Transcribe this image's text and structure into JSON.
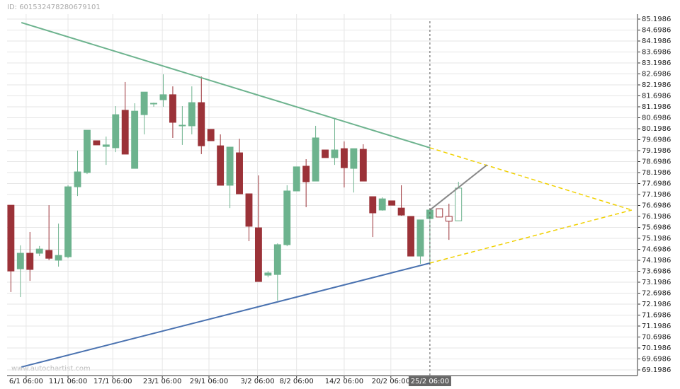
{
  "chart_data": {
    "type": "candlestick",
    "id_label": "ID: 601532478280679101",
    "watermark": "www.autochartist.com",
    "ylim": [
      69.1986,
      85.1986
    ],
    "xlim": [
      -0.4,
      65.8
    ],
    "yticks": [
      69.1986,
      69.6986,
      70.1986,
      70.6986,
      71.1986,
      71.6986,
      72.1986,
      72.6986,
      73.1986,
      73.6986,
      74.1986,
      74.6986,
      75.1986,
      75.6986,
      76.1986,
      76.6986,
      77.1986,
      77.6986,
      78.1986,
      78.6986,
      79.1986,
      79.6986,
      80.1986,
      80.6986,
      81.1986,
      81.6986,
      82.1986,
      82.6986,
      83.1986,
      83.6986,
      84.1986,
      84.6986,
      85.1986
    ],
    "xticks": [
      {
        "value": 1.6,
        "label": "6/1 06:00"
      },
      {
        "value": 6,
        "label": "11/1 06:00"
      },
      {
        "value": 10.7,
        "label": "17/1 06:00"
      },
      {
        "value": 15.9,
        "label": "23/1 06:00"
      },
      {
        "value": 20.8,
        "label": "29/1 06:00"
      },
      {
        "value": 25.9,
        "label": "3/2 06:00"
      },
      {
        "value": 30,
        "label": "8/2 06:00"
      },
      {
        "value": 35,
        "label": "14/2 06:00"
      },
      {
        "value": 39.9,
        "label": "20/2 06:00"
      }
    ],
    "marker": {
      "value": 44,
      "label": "25/2 06:00"
    },
    "grid": true,
    "up_color": "#6db38e",
    "down_color": "#9b3238",
    "open": [
      76.71,
      73.81,
      74.52,
      74.52,
      74.65,
      74.2,
      74.36,
      77.55,
      78.2,
      79.65,
      79.39,
      79.33,
      81.04,
      78.39,
      80.84,
      81.33,
      81.52,
      81.75,
      80.33,
      80.33,
      81.39,
      80.17,
      79.42,
      77.62,
      79.1,
      77.23,
      75.68,
      73.52,
      73.55,
      74.91,
      77.36,
      78.49,
      77.81,
      79.23,
      78.88,
      79.29,
      78.39,
      79.26,
      77.1,
      76.49,
      76.91,
      76.58,
      76.2,
      74.39,
      76.1
    ],
    "high": [
      76.71,
      74.88,
      75.49,
      74.85,
      76.71,
      75.87,
      77.62,
      79.2,
      80.13,
      79.65,
      79.84,
      81.23,
      82.33,
      81.36,
      81.87,
      81.39,
      82.68,
      82.13,
      81.23,
      82.13,
      82.58,
      80.17,
      79.94,
      79.36,
      79.74,
      77.23,
      78.07,
      73.71,
      74.97,
      77.62,
      78.46,
      78.81,
      80.33,
      79.23,
      80.65,
      79.62,
      79.29,
      79.49,
      77.1,
      77.07,
      76.91,
      77.62,
      76.2,
      76.04,
      76.49
    ],
    "low": [
      72.75,
      72.52,
      73.26,
      74.39,
      74.2,
      73.91,
      74.29,
      77.13,
      78.13,
      79.46,
      78.55,
      79.13,
      79.04,
      78.39,
      79.94,
      81.2,
      81.2,
      79.78,
      79.46,
      79.94,
      79.04,
      79.65,
      77.62,
      76.58,
      77.23,
      75.07,
      73.23,
      73.42,
      72.36,
      74.84,
      77.36,
      76.62,
      77.81,
      78.88,
      78.55,
      77.52,
      77.29,
      77.81,
      75.26,
      76.46,
      76.71,
      76.23,
      74.39,
      74.04,
      74.04
    ],
    "close": [
      73.71,
      74.52,
      73.78,
      74.71,
      74.29,
      74.42,
      77.55,
      78.23,
      80.13,
      79.46,
      79.46,
      80.84,
      79.04,
      81.0,
      81.87,
      81.36,
      81.75,
      80.49,
      80.36,
      81.39,
      79.42,
      79.65,
      77.62,
      79.36,
      77.23,
      75.75,
      73.23,
      73.62,
      74.91,
      77.36,
      78.46,
      77.78,
      79.78,
      78.88,
      79.23,
      78.42,
      79.29,
      77.81,
      76.36,
      77.0,
      76.71,
      76.26,
      74.39,
      76.04,
      76.49
    ],
    "forecast": {
      "start": 45,
      "open": [
        76.55,
        76.2,
        76.0
      ],
      "high": [
        76.55,
        76.78,
        77.78
      ],
      "low": [
        76.17,
        75.13,
        76.0
      ],
      "close": [
        76.17,
        75.98,
        77.49
      ]
    },
    "trendlines": [
      {
        "x": [
          1.1,
          44
        ],
        "y": [
          85.04,
          79.33
        ],
        "color": "#6db38e",
        "dash": false
      },
      {
        "x": [
          1.1,
          44
        ],
        "y": [
          69.33,
          74.07
        ],
        "color": "#4a72b0",
        "dash": false
      },
      {
        "x": [
          44,
          65.2
        ],
        "y": [
          79.33,
          76.49
        ],
        "color": "#f0d000",
        "dash": true
      },
      {
        "x": [
          44,
          65.2
        ],
        "y": [
          74.07,
          76.49
        ],
        "color": "#f0d000",
        "dash": true
      },
      {
        "x": [
          44,
          50
        ],
        "y": [
          76.49,
          78.55
        ],
        "color": "#888888",
        "dash": false
      }
    ]
  }
}
